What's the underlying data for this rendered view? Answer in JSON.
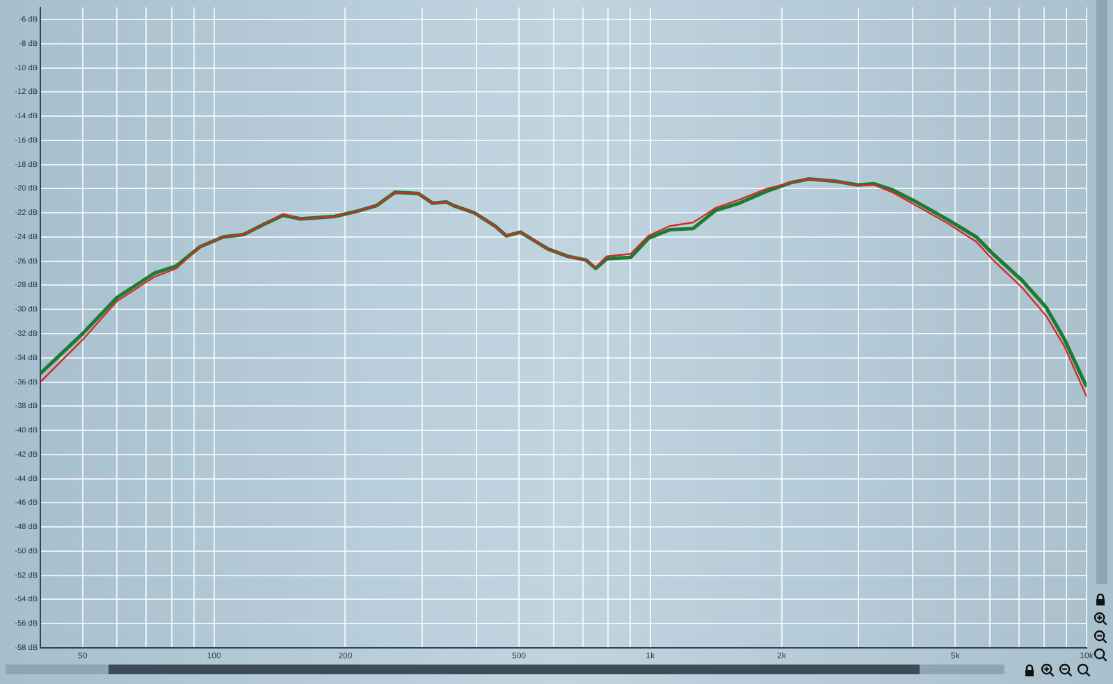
{
  "chart_data": {
    "type": "line",
    "x": [
      40,
      50,
      60,
      73,
      82,
      93,
      105,
      117,
      131,
      144,
      158,
      189,
      211,
      236,
      260,
      294,
      317,
      341,
      354,
      395,
      441,
      468,
      504,
      542,
      583,
      647,
      712,
      750,
      795,
      901,
      991,
      1107,
      1254,
      1411,
      1600,
      1853,
      2100,
      2311,
      2675,
      2988,
      3264,
      3590,
      4070,
      4820,
      5590,
      6100,
      7120,
      8070,
      8880,
      10000
    ],
    "series": [
      {
        "color": "#1f7a34",
        "values": [
          -35.3,
          -32.0,
          -29.0,
          -27.0,
          -26.4,
          -24.8,
          -24.0,
          -23.8,
          -22.9,
          -22.2,
          -22.5,
          -22.3,
          -21.9,
          -21.4,
          -20.3,
          -20.4,
          -21.2,
          -21.1,
          -21.4,
          -22.0,
          -23.1,
          -23.9,
          -23.6,
          -24.3,
          -25.0,
          -25.6,
          -25.9,
          -26.6,
          -25.8,
          -25.7,
          -24.1,
          -23.4,
          -23.3,
          -21.8,
          -21.2,
          -20.2,
          -19.5,
          -19.2,
          -19.4,
          -19.7,
          -19.6,
          -20.1,
          -21.1,
          -22.6,
          -24.0,
          -25.4,
          -27.6,
          -29.8,
          -32.4,
          -36.4
        ]
      },
      {
        "color": "#d42a2a",
        "values": [
          -36.0,
          -32.5,
          -29.3,
          -27.3,
          -26.6,
          -24.8,
          -24.0,
          -23.8,
          -22.9,
          -22.1,
          -22.5,
          -22.3,
          -21.9,
          -21.4,
          -20.3,
          -20.4,
          -21.2,
          -21.1,
          -21.4,
          -22.0,
          -23.1,
          -23.9,
          -23.6,
          -24.3,
          -25.0,
          -25.6,
          -25.9,
          -26.5,
          -25.6,
          -25.4,
          -23.9,
          -23.1,
          -22.8,
          -21.6,
          -20.9,
          -20.0,
          -19.5,
          -19.2,
          -19.4,
          -19.7,
          -19.7,
          -20.3,
          -21.4,
          -22.9,
          -24.4,
          -25.9,
          -28.2,
          -30.5,
          -33.0,
          -37.2
        ]
      }
    ],
    "xlim": [
      40,
      10000
    ],
    "ylim": [
      -58,
      -5
    ],
    "xticks": [
      {
        "value": 50,
        "label": "50"
      },
      {
        "value": 60,
        "label": null
      },
      {
        "value": 70,
        "label": null
      },
      {
        "value": 80,
        "label": null
      },
      {
        "value": 90,
        "label": null
      },
      {
        "value": 100,
        "label": "100"
      },
      {
        "value": 200,
        "label": "200"
      },
      {
        "value": 300,
        "label": null
      },
      {
        "value": 400,
        "label": null
      },
      {
        "value": 500,
        "label": "500"
      },
      {
        "value": 600,
        "label": null
      },
      {
        "value": 700,
        "label": null
      },
      {
        "value": 800,
        "label": null
      },
      {
        "value": 900,
        "label": null
      },
      {
        "value": 1000,
        "label": "1k"
      },
      {
        "value": 2000,
        "label": "2k"
      },
      {
        "value": 3000,
        "label": null
      },
      {
        "value": 4000,
        "label": null
      },
      {
        "value": 5000,
        "label": "5k"
      },
      {
        "value": 6000,
        "label": null
      },
      {
        "value": 7000,
        "label": null
      },
      {
        "value": 8000,
        "label": null
      },
      {
        "value": 9000,
        "label": null
      },
      {
        "value": 10000,
        "label": "10k"
      }
    ],
    "yticks": [
      {
        "value": -6,
        "label": "-6 dB"
      },
      {
        "value": -8,
        "label": "-8 dB"
      },
      {
        "value": -10,
        "label": "-10 dB"
      },
      {
        "value": -12,
        "label": "-12 dB"
      },
      {
        "value": -14,
        "label": "-14 dB"
      },
      {
        "value": -16,
        "label": "-16 dB"
      },
      {
        "value": -18,
        "label": "-18 dB"
      },
      {
        "value": -20,
        "label": "-20 dB"
      },
      {
        "value": -22,
        "label": "-22 dB"
      },
      {
        "value": -24,
        "label": "-24 dB"
      },
      {
        "value": -26,
        "label": "-26 dB"
      },
      {
        "value": -28,
        "label": "-28 dB"
      },
      {
        "value": -30,
        "label": "-30 dB"
      },
      {
        "value": -32,
        "label": "-32 dB"
      },
      {
        "value": -34,
        "label": "-34 dB"
      },
      {
        "value": -36,
        "label": "-36 dB"
      },
      {
        "value": -38,
        "label": "-38 dB"
      },
      {
        "value": -40,
        "label": "-40 dB"
      },
      {
        "value": -42,
        "label": "-42 dB"
      },
      {
        "value": -44,
        "label": "-44 dB"
      },
      {
        "value": -46,
        "label": "-46 dB"
      },
      {
        "value": -48,
        "label": "-48 dB"
      },
      {
        "value": -50,
        "label": "-50 dB"
      },
      {
        "value": -52,
        "label": "-52 dB"
      },
      {
        "value": -54,
        "label": "-54 dB"
      },
      {
        "value": -56,
        "label": "-56 dB"
      },
      {
        "value": -58,
        "label": "-58 dB"
      }
    ],
    "log": "x",
    "grid": true,
    "marker": "none",
    "line_style": "solid"
  }
}
